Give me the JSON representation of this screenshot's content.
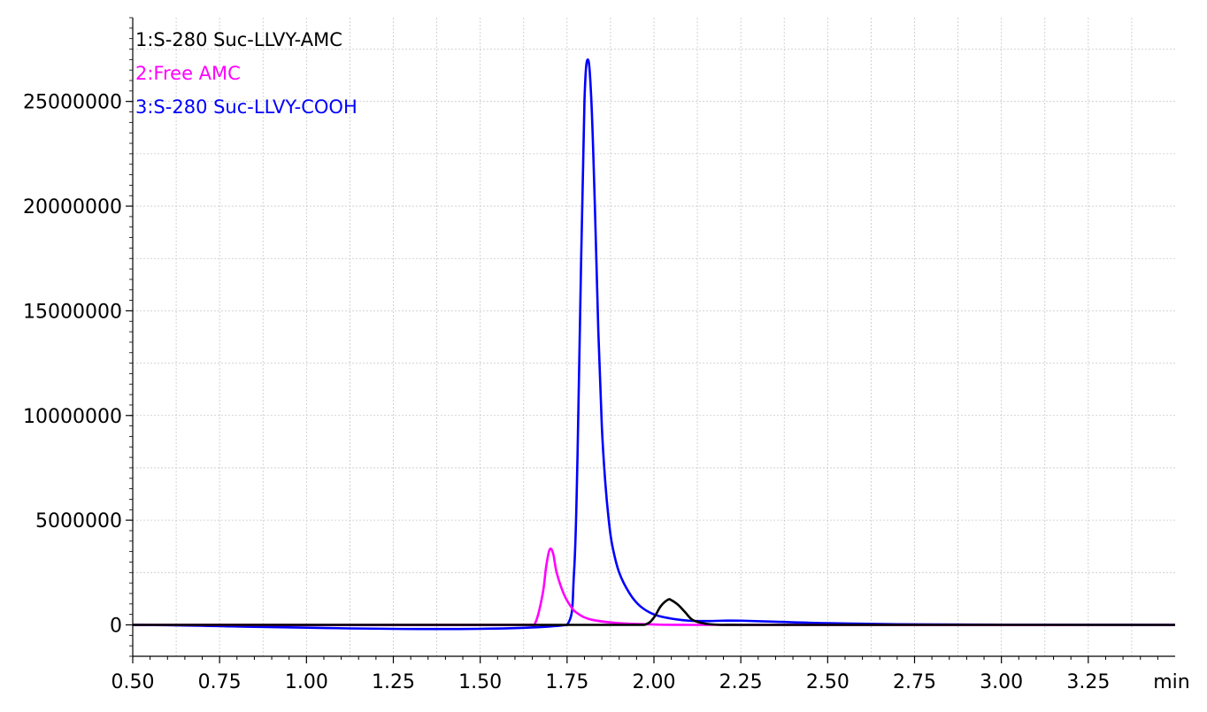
{
  "chart_data": {
    "type": "line",
    "x_unit": "min",
    "xlim": [
      0.5,
      3.5
    ],
    "ylim": [
      -1500000,
      29000000
    ],
    "x_ticks": [
      "0.50",
      "0.75",
      "1.00",
      "1.25",
      "1.50",
      "1.75",
      "2.00",
      "2.25",
      "2.50",
      "2.75",
      "3.00",
      "3.25"
    ],
    "y_ticks": [
      "0",
      "5000000",
      "10000000",
      "15000000",
      "20000000",
      "25000000"
    ],
    "grid": true,
    "legend_position": "top-left",
    "series": [
      {
        "name": "1:S-280 Suc-LLVY-AMC",
        "color": "#000000",
        "x": [
          0.5,
          1.5,
          1.95,
          1.98,
          2.0,
          2.02,
          2.04,
          2.05,
          2.07,
          2.09,
          2.11,
          2.14,
          2.18,
          2.25,
          3.5
        ],
        "y": [
          0,
          0,
          0,
          50000,
          350000,
          900000,
          1200000,
          1180000,
          950000,
          600000,
          250000,
          80000,
          10000,
          0,
          0
        ]
      },
      {
        "name": "2:Free AMC",
        "color": "#ff00ff",
        "x": [
          0.5,
          1.64,
          1.66,
          1.68,
          1.69,
          1.7,
          1.71,
          1.72,
          1.74,
          1.76,
          1.78,
          1.82,
          1.9,
          2.0,
          2.1,
          3.5
        ],
        "y": [
          0,
          0,
          150000,
          1500000,
          2800000,
          3600000,
          3400000,
          2500000,
          1500000,
          900000,
          550000,
          250000,
          80000,
          20000,
          0,
          0
        ]
      },
      {
        "name": "3:S-280 Suc-LLVY-COOH",
        "color": "#0000ff",
        "x": [
          0.5,
          1.75,
          1.77,
          1.78,
          1.79,
          1.8,
          1.81,
          1.82,
          1.83,
          1.84,
          1.85,
          1.86,
          1.87,
          1.88,
          1.9,
          1.93,
          1.96,
          2.0,
          2.05,
          2.1,
          2.15,
          2.2,
          2.25,
          2.35,
          2.5,
          2.7,
          3.0,
          3.5
        ],
        "y": [
          0,
          0,
          2500000,
          8000000,
          17000000,
          25000000,
          27000000,
          25000000,
          20000000,
          14000000,
          9500000,
          6800000,
          5000000,
          3800000,
          2500000,
          1500000,
          900000,
          500000,
          300000,
          200000,
          180000,
          200000,
          200000,
          150000,
          80000,
          30000,
          10000,
          0
        ]
      }
    ]
  }
}
